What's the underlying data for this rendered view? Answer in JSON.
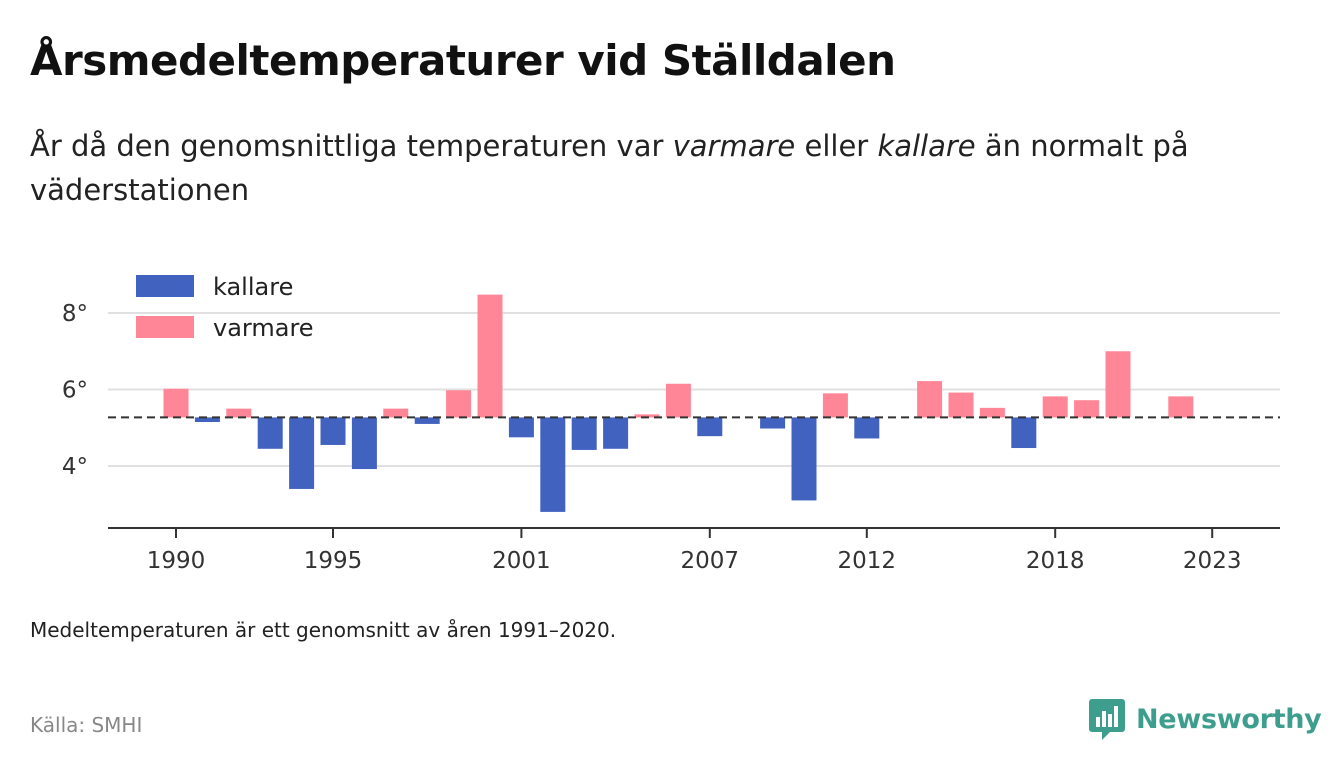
{
  "header": {
    "title": "Årsmedeltemperaturer vid Ställdalen",
    "subtitle_part1": "År då den genomsnittliga temperaturen var ",
    "subtitle_warm": "varmare",
    "subtitle_part2": " eller ",
    "subtitle_cold": "kallare",
    "subtitle_part3": " än normalt på väderstationen"
  },
  "footer": {
    "footnote": "Medeltemperaturen är ett genomsnitt av åren 1991–2020.",
    "source": "Källa: SMHI",
    "brand": "Newsworthy",
    "brand_icon": "bar-chart-speech-bubble-icon"
  },
  "colors": {
    "colder": "#4262c0",
    "warmer": "#ff8696",
    "brand": "#3e9e8e",
    "grid": "#e0e0e0",
    "axis": "#333333"
  },
  "chart_data": {
    "type": "bar",
    "baseline": 5.27,
    "baseline_style": "dashed",
    "ylim": [
      2.7,
      9.0
    ],
    "yticks": [
      4,
      6,
      8
    ],
    "ytick_labels": [
      "4°",
      "6°",
      "8°"
    ],
    "xticks": [
      1990,
      1995,
      2001,
      2007,
      2012,
      2018,
      2023
    ],
    "grid": true,
    "legend_position": "top-left",
    "legend": [
      {
        "label": "kallare",
        "color_key": "colder"
      },
      {
        "label": "varmare",
        "color_key": "warmer"
      }
    ],
    "years": [
      1990,
      1991,
      1992,
      1993,
      1994,
      1995,
      1996,
      1997,
      1998,
      1999,
      2000,
      2001,
      2002,
      2003,
      2004,
      2005,
      2006,
      2007,
      2008,
      2009,
      2010,
      2011,
      2012,
      2013,
      2014,
      2015,
      2016,
      2017,
      2018,
      2019,
      2020,
      2021,
      2022
    ],
    "values": [
      6.02,
      5.15,
      5.5,
      4.45,
      3.4,
      4.55,
      3.92,
      5.5,
      5.1,
      5.98,
      8.48,
      4.75,
      2.8,
      4.42,
      4.45,
      5.35,
      6.15,
      4.78,
      null,
      4.98,
      3.1,
      5.9,
      4.72,
      null,
      6.22,
      5.92,
      5.52,
      4.47,
      5.82,
      5.72,
      7.0,
      null,
      5.82
    ]
  }
}
